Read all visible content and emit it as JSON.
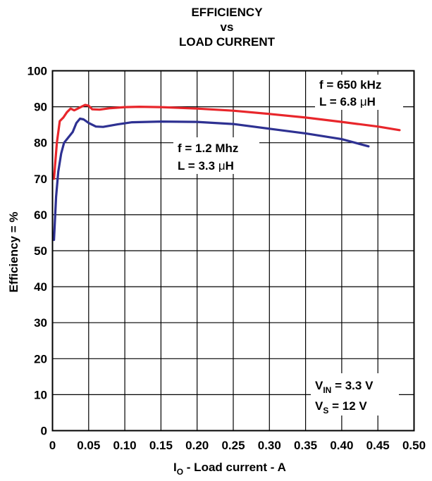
{
  "chart_data": {
    "type": "line",
    "title_lines": [
      "EFFICIENCY",
      "vs",
      "LOAD CURRENT"
    ],
    "xlabel": {
      "main": "I",
      "sub": "O",
      "rest": " - Load current - A"
    },
    "ylabel": "Efficiency = %",
    "xlim": [
      0,
      0.5
    ],
    "ylim": [
      0,
      100
    ],
    "x_ticks": [
      "0",
      "0.05",
      "0.10",
      "0.15",
      "0.20",
      "0.25",
      "0.30",
      "0.35",
      "0.40",
      "0.45",
      "0.50"
    ],
    "y_ticks": [
      "0",
      "10",
      "20",
      "30",
      "40",
      "50",
      "60",
      "70",
      "80",
      "90",
      "100"
    ],
    "grid": true,
    "series": [
      {
        "color": "#e8262b",
        "points": [
          [
            0.002,
            70
          ],
          [
            0.006,
            80
          ],
          [
            0.01,
            86
          ],
          [
            0.015,
            87
          ],
          [
            0.02,
            88.5
          ],
          [
            0.025,
            89.5
          ],
          [
            0.03,
            89
          ],
          [
            0.035,
            89.5
          ],
          [
            0.04,
            90
          ],
          [
            0.045,
            90.5
          ],
          [
            0.05,
            90.3
          ],
          [
            0.055,
            89.3
          ],
          [
            0.065,
            89.2
          ],
          [
            0.08,
            89.6
          ],
          [
            0.1,
            89.9
          ],
          [
            0.12,
            90
          ],
          [
            0.15,
            89.9
          ],
          [
            0.2,
            89.5
          ],
          [
            0.25,
            88.9
          ],
          [
            0.3,
            88
          ],
          [
            0.35,
            87
          ],
          [
            0.4,
            85.8
          ],
          [
            0.45,
            84.5
          ],
          [
            0.48,
            83.5
          ]
        ]
      },
      {
        "color": "#2e3192",
        "points": [
          [
            0.002,
            53
          ],
          [
            0.005,
            65
          ],
          [
            0.008,
            72
          ],
          [
            0.012,
            77
          ],
          [
            0.016,
            80
          ],
          [
            0.022,
            81.5
          ],
          [
            0.028,
            83
          ],
          [
            0.033,
            85.5
          ],
          [
            0.038,
            86.7
          ],
          [
            0.043,
            86.5
          ],
          [
            0.05,
            85.5
          ],
          [
            0.06,
            84.5
          ],
          [
            0.07,
            84.4
          ],
          [
            0.09,
            85.1
          ],
          [
            0.11,
            85.7
          ],
          [
            0.15,
            85.9
          ],
          [
            0.2,
            85.8
          ],
          [
            0.25,
            85.2
          ],
          [
            0.3,
            83.9
          ],
          [
            0.35,
            82.6
          ],
          [
            0.4,
            81
          ],
          [
            0.437,
            79
          ]
        ]
      }
    ],
    "annotations": {
      "red_f": "f = 650 kHz",
      "red_l": "L = 6.8 ",
      "red_l_mu": "μ",
      "red_l_unit": "H",
      "blue_f": "f = 1.2 Mhz",
      "blue_l": "L = 3.3 ",
      "blue_l_mu": "μ",
      "blue_l_unit": "H",
      "vin_main": "V",
      "vin_sub": "IN",
      "vin_rest": " = 3.3 V",
      "vs_main": "V",
      "vs_sub": "S",
      "vs_rest": " = 12 V"
    }
  }
}
